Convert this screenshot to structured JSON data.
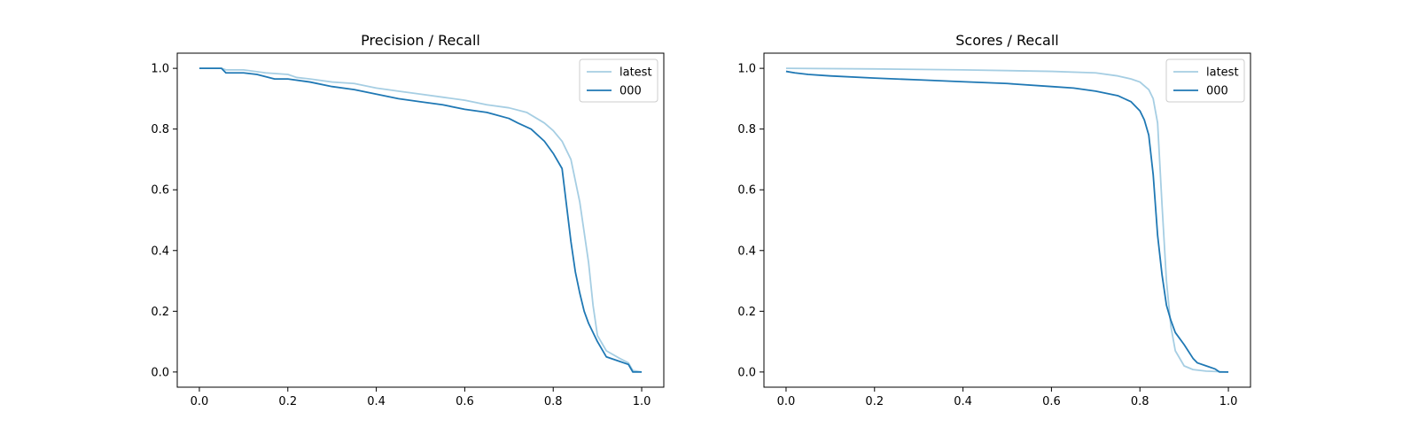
{
  "chart_data": [
    {
      "type": "line",
      "title": "Precision / Recall",
      "xlabel": "",
      "ylabel": "",
      "xlim": [
        -0.05,
        1.05
      ],
      "ylim": [
        -0.05,
        1.05
      ],
      "xticks": [
        "0.0",
        "0.2",
        "0.4",
        "0.6",
        "0.8",
        "1.0"
      ],
      "yticks": [
        "0.0",
        "0.2",
        "0.4",
        "0.6",
        "0.8",
        "1.0"
      ],
      "grid": false,
      "legend": "top-right",
      "series": [
        {
          "name": "latest",
          "color": "#a6cee3",
          "points": [
            [
              0,
              1.0
            ],
            [
              0.05,
              1.0
            ],
            [
              0.06,
              0.995
            ],
            [
              0.1,
              0.995
            ],
            [
              0.15,
              0.985
            ],
            [
              0.2,
              0.98
            ],
            [
              0.22,
              0.97
            ],
            [
              0.25,
              0.965
            ],
            [
              0.3,
              0.955
            ],
            [
              0.35,
              0.95
            ],
            [
              0.4,
              0.935
            ],
            [
              0.45,
              0.925
            ],
            [
              0.5,
              0.915
            ],
            [
              0.55,
              0.905
            ],
            [
              0.6,
              0.895
            ],
            [
              0.65,
              0.88
            ],
            [
              0.7,
              0.87
            ],
            [
              0.74,
              0.855
            ],
            [
              0.78,
              0.82
            ],
            [
              0.8,
              0.795
            ],
            [
              0.82,
              0.76
            ],
            [
              0.84,
              0.7
            ],
            [
              0.86,
              0.56
            ],
            [
              0.88,
              0.36
            ],
            [
              0.89,
              0.22
            ],
            [
              0.9,
              0.12
            ],
            [
              0.92,
              0.07
            ],
            [
              0.95,
              0.045
            ],
            [
              0.97,
              0.03
            ],
            [
              0.98,
              0.005
            ],
            [
              1.0,
              0.0
            ]
          ]
        },
        {
          "name": "000",
          "color": "#1f78b4",
          "points": [
            [
              0,
              1.0
            ],
            [
              0.05,
              1.0
            ],
            [
              0.06,
              0.985
            ],
            [
              0.1,
              0.985
            ],
            [
              0.13,
              0.98
            ],
            [
              0.17,
              0.965
            ],
            [
              0.2,
              0.965
            ],
            [
              0.25,
              0.955
            ],
            [
              0.3,
              0.94
            ],
            [
              0.35,
              0.93
            ],
            [
              0.4,
              0.915
            ],
            [
              0.45,
              0.9
            ],
            [
              0.5,
              0.89
            ],
            [
              0.55,
              0.88
            ],
            [
              0.6,
              0.865
            ],
            [
              0.65,
              0.855
            ],
            [
              0.7,
              0.835
            ],
            [
              0.72,
              0.82
            ],
            [
              0.75,
              0.8
            ],
            [
              0.78,
              0.76
            ],
            [
              0.8,
              0.72
            ],
            [
              0.82,
              0.67
            ],
            [
              0.83,
              0.55
            ],
            [
              0.84,
              0.43
            ],
            [
              0.85,
              0.33
            ],
            [
              0.86,
              0.26
            ],
            [
              0.87,
              0.2
            ],
            [
              0.88,
              0.16
            ],
            [
              0.9,
              0.1
            ],
            [
              0.92,
              0.05
            ],
            [
              0.95,
              0.035
            ],
            [
              0.97,
              0.025
            ],
            [
              0.98,
              0.0
            ],
            [
              1.0,
              0.0
            ]
          ]
        }
      ]
    },
    {
      "type": "line",
      "title": "Scores / Recall",
      "xlabel": "",
      "ylabel": "",
      "xlim": [
        -0.05,
        1.05
      ],
      "ylim": [
        -0.05,
        1.05
      ],
      "xticks": [
        "0.0",
        "0.2",
        "0.4",
        "0.6",
        "0.8",
        "1.0"
      ],
      "yticks": [
        "0.0",
        "0.2",
        "0.4",
        "0.6",
        "0.8",
        "1.0"
      ],
      "grid": false,
      "legend": "top-right",
      "series": [
        {
          "name": "latest",
          "color": "#a6cee3",
          "points": [
            [
              0,
              1.0
            ],
            [
              0.2,
              0.998
            ],
            [
              0.4,
              0.995
            ],
            [
              0.6,
              0.99
            ],
            [
              0.7,
              0.985
            ],
            [
              0.75,
              0.975
            ],
            [
              0.78,
              0.965
            ],
            [
              0.8,
              0.955
            ],
            [
              0.82,
              0.93
            ],
            [
              0.83,
              0.9
            ],
            [
              0.84,
              0.82
            ],
            [
              0.85,
              0.55
            ],
            [
              0.86,
              0.3
            ],
            [
              0.87,
              0.15
            ],
            [
              0.88,
              0.07
            ],
            [
              0.9,
              0.02
            ],
            [
              0.92,
              0.008
            ],
            [
              0.95,
              0.003
            ],
            [
              1.0,
              0.0
            ]
          ]
        },
        {
          "name": "000",
          "color": "#1f78b4",
          "points": [
            [
              0,
              0.99
            ],
            [
              0.02,
              0.985
            ],
            [
              0.05,
              0.98
            ],
            [
              0.1,
              0.975
            ],
            [
              0.2,
              0.968
            ],
            [
              0.3,
              0.962
            ],
            [
              0.4,
              0.956
            ],
            [
              0.5,
              0.95
            ],
            [
              0.6,
              0.94
            ],
            [
              0.65,
              0.935
            ],
            [
              0.7,
              0.925
            ],
            [
              0.75,
              0.91
            ],
            [
              0.78,
              0.89
            ],
            [
              0.8,
              0.86
            ],
            [
              0.81,
              0.83
            ],
            [
              0.82,
              0.78
            ],
            [
              0.83,
              0.65
            ],
            [
              0.84,
              0.45
            ],
            [
              0.85,
              0.32
            ],
            [
              0.86,
              0.22
            ],
            [
              0.87,
              0.17
            ],
            [
              0.88,
              0.13
            ],
            [
              0.9,
              0.09
            ],
            [
              0.92,
              0.045
            ],
            [
              0.93,
              0.03
            ],
            [
              0.95,
              0.02
            ],
            [
              0.97,
              0.01
            ],
            [
              0.98,
              0.0
            ],
            [
              1.0,
              0.0
            ]
          ]
        }
      ]
    }
  ]
}
